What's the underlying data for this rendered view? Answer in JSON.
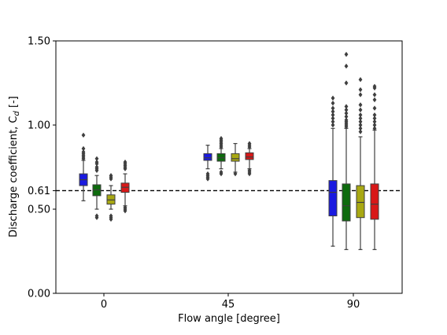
{
  "chart_data": {
    "type": "box",
    "xlabel": "Flow angle [degree]",
    "ylabel": "Discharge coefficient, C",
    "ylabel_subscript": "d",
    "ylabel_suffix": " [-]",
    "ylim": [
      0.0,
      1.5
    ],
    "yticks": [
      {
        "value": 0.0,
        "label": "0.00"
      },
      {
        "value": 0.5,
        "label": "0.50"
      },
      {
        "value": 0.61,
        "label": "0.61"
      },
      {
        "value": 1.0,
        "label": "1.00"
      },
      {
        "value": 1.5,
        "label": "1.50"
      }
    ],
    "reference_line": {
      "value": 0.61,
      "style": "dashed",
      "color": "#000000"
    },
    "categories": [
      "0",
      "45",
      "90"
    ],
    "series_colors": [
      "#1a1ae0",
      "#0d6b0d",
      "#a8a812",
      "#d81818"
    ],
    "groups": [
      {
        "category": "0",
        "boxes": [
          {
            "whislo": 0.55,
            "q1": 0.64,
            "med": 0.675,
            "q3": 0.71,
            "whishi": 0.79,
            "fliers": [
              0.8,
              0.81,
              0.82,
              0.83,
              0.84,
              0.86,
              0.94
            ]
          },
          {
            "whislo": 0.5,
            "q1": 0.58,
            "med": 0.615,
            "q3": 0.645,
            "whishi": 0.7,
            "fliers": [
              0.45,
              0.46,
              0.73,
              0.74,
              0.75,
              0.77,
              0.78,
              0.8
            ]
          },
          {
            "whislo": 0.5,
            "q1": 0.53,
            "med": 0.555,
            "q3": 0.585,
            "whishi": 0.64,
            "fliers": [
              0.44,
              0.45,
              0.46,
              0.68,
              0.69,
              0.7
            ]
          },
          {
            "whislo": 0.52,
            "q1": 0.6,
            "med": 0.63,
            "q3": 0.655,
            "whishi": 0.71,
            "fliers": [
              0.49,
              0.5,
              0.51,
              0.74,
              0.75,
              0.76,
              0.77,
              0.78
            ]
          }
        ]
      },
      {
        "category": "45",
        "boxes": [
          {
            "whislo": 0.74,
            "q1": 0.79,
            "med": 0.805,
            "q3": 0.83,
            "whishi": 0.88,
            "fliers": [
              0.68,
              0.69,
              0.7,
              0.71
            ]
          },
          {
            "whislo": 0.74,
            "q1": 0.785,
            "med": 0.805,
            "q3": 0.83,
            "whishi": 0.86,
            "fliers": [
              0.71,
              0.72,
              0.87,
              0.88,
              0.89,
              0.9,
              0.91,
              0.92
            ]
          },
          {
            "whislo": 0.72,
            "q1": 0.785,
            "med": 0.8,
            "q3": 0.83,
            "whishi": 0.89,
            "fliers": [
              0.71
            ]
          },
          {
            "whislo": 0.74,
            "q1": 0.795,
            "med": 0.81,
            "q3": 0.835,
            "whishi": 0.86,
            "fliers": [
              0.71,
              0.72,
              0.73,
              0.87,
              0.88,
              0.89
            ]
          }
        ]
      },
      {
        "category": "90",
        "boxes": [
          {
            "whislo": 0.28,
            "q1": 0.46,
            "med": 0.6,
            "q3": 0.67,
            "whishi": 0.98,
            "fliers": [
              1.0,
              1.02,
              1.04,
              1.06,
              1.08,
              1.1,
              1.13,
              1.16
            ]
          },
          {
            "whislo": 0.26,
            "q1": 0.43,
            "med": 0.52,
            "q3": 0.65,
            "whishi": 0.98,
            "fliers": [
              0.99,
              1.0,
              1.01,
              1.02,
              1.03,
              1.05,
              1.07,
              1.09,
              1.11,
              1.25,
              1.35,
              1.42
            ]
          },
          {
            "whislo": 0.26,
            "q1": 0.45,
            "med": 0.54,
            "q3": 0.64,
            "whishi": 0.93,
            "fliers": [
              0.96,
              0.98,
              1.0,
              1.02,
              1.04,
              1.06,
              1.09,
              1.12,
              1.18,
              1.21,
              1.27
            ]
          },
          {
            "whislo": 0.26,
            "q1": 0.44,
            "med": 0.53,
            "q3": 0.65,
            "whishi": 0.97,
            "fliers": [
              0.98,
              1.0,
              1.02,
              1.04,
              1.06,
              1.1,
              1.15,
              1.18,
              1.22,
              1.23
            ]
          }
        ]
      }
    ]
  }
}
